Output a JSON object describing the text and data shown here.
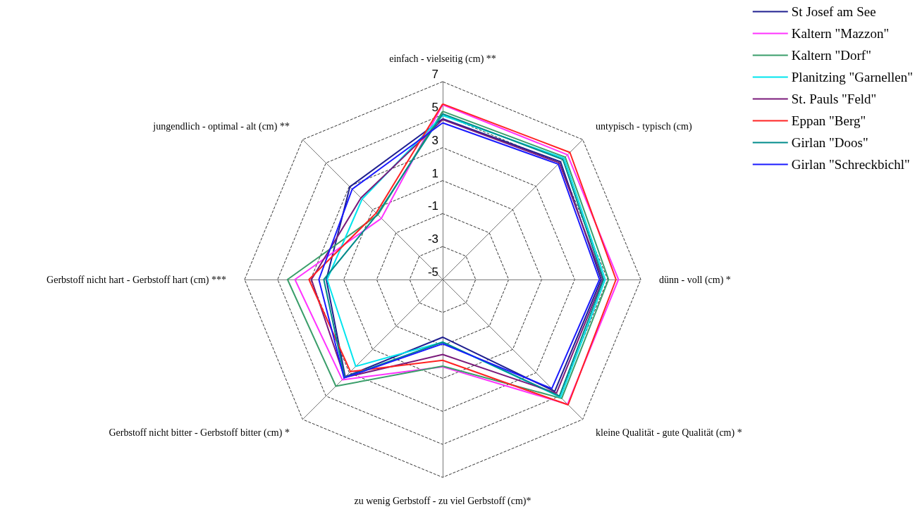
{
  "chart_data": {
    "type": "radar",
    "categories": [
      "einfach - vielseitig (cm) **",
      "untypisch - typisch (cm)",
      "dünn - voll (cm) *",
      "kleine Qualität - gute Qualität (cm) *",
      "zu wenig Gerbstoff - zu viel Gerbstoff (cm)*",
      "Gerbstoff nicht bitter - Gerbstoff bitter (cm) *",
      "Gerbstoff nicht hart - Gerbstoff hart (cm) ***",
      "jungendlich - optimal - alt (cm) **"
    ],
    "series": [
      {
        "name": "St Josef am See",
        "color": "#1f1f8f",
        "values": [
          4.75,
          5.1,
          4.6,
          4.6,
          -1.5,
          3.35,
          2.05,
          2.95
        ]
      },
      {
        "name": "Kaltern \"Mazzon\"",
        "color": "#ff33ff",
        "values": [
          5.6,
          5.7,
          5.65,
          5.7,
          0.3,
          3.6,
          3.95,
          0.25
        ]
      },
      {
        "name": "Kaltern \"Dorf\"",
        "color": "#3a9e6a",
        "values": [
          5.2,
          5.5,
          5.05,
          5.2,
          0.25,
          4.15,
          4.4,
          0.55
        ]
      },
      {
        "name": "Planitzing \"Garnellen\"",
        "color": "#00e5ee",
        "values": [
          4.95,
          5.4,
          4.85,
          5.1,
          -1.2,
          2.45,
          2.0,
          1.9
        ]
      },
      {
        "name": "St. Pauls \"Feld\"",
        "color": "#7a1a7a",
        "values": [
          4.7,
          5.0,
          4.7,
          4.75,
          -0.45,
          3.4,
          2.95,
          2.0
        ]
      },
      {
        "name": "Eppan \"Berg\"",
        "color": "#ff2222",
        "values": [
          5.65,
          5.9,
          5.5,
          5.75,
          -0.1,
          2.9,
          3.1,
          0.7
        ]
      },
      {
        "name": "Girlan \"Doos\"",
        "color": "#008b8b",
        "values": [
          5.05,
          5.3,
          4.75,
          5.0,
          -1.2,
          3.4,
          2.2,
          0.6
        ]
      },
      {
        "name": "Girlan \"Schreckbichl\"",
        "color": "#1a1aff",
        "values": [
          4.5,
          4.9,
          4.5,
          4.35,
          -1.1,
          3.45,
          2.5,
          2.75
        ]
      }
    ],
    "ylim": [
      -5,
      7
    ],
    "yticks": [
      -5,
      -3,
      -1,
      1,
      3,
      5,
      7
    ],
    "grid": true,
    "legend": "top right",
    "marker": "none",
    "line_style": "solid"
  }
}
